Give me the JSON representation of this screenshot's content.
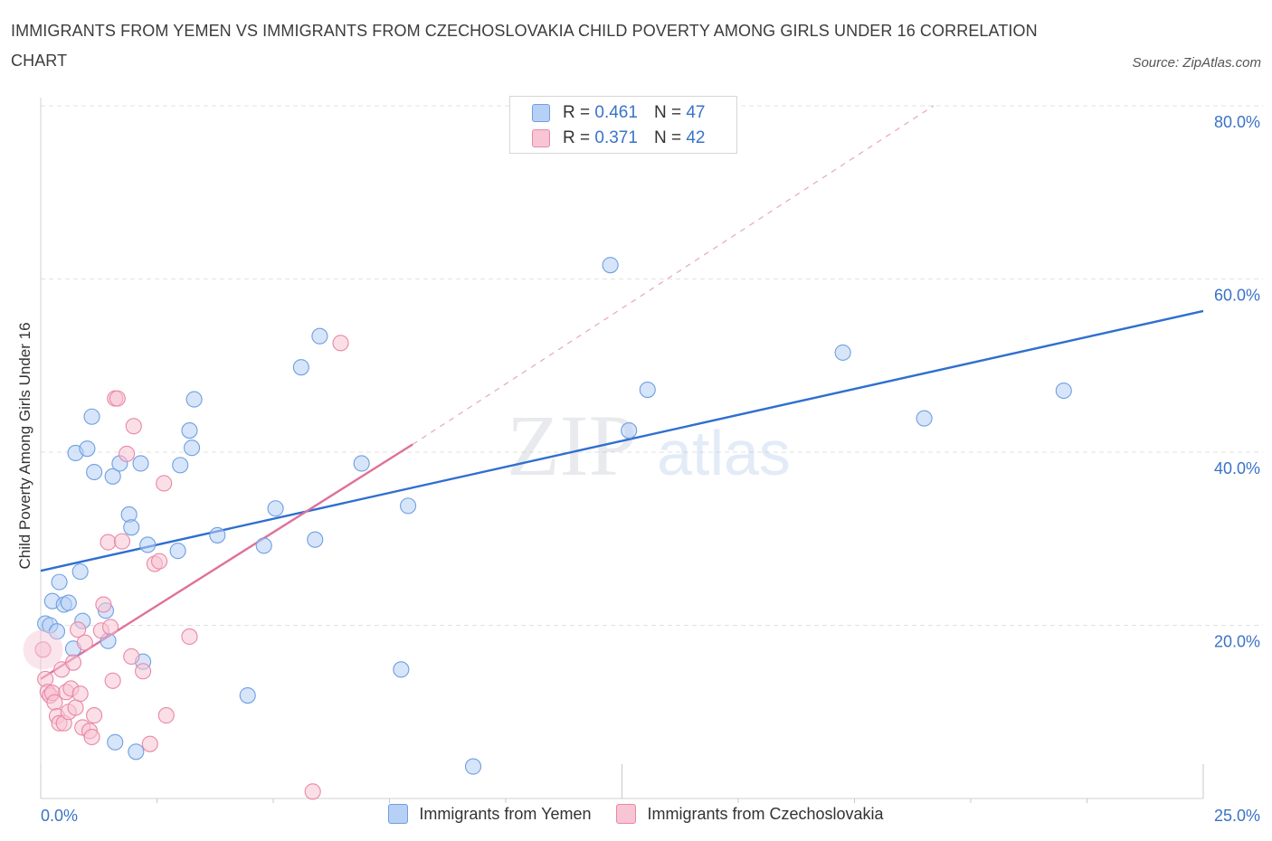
{
  "chart_data": {
    "type": "scatter",
    "title": "IMMIGRANTS FROM YEMEN VS IMMIGRANTS FROM CZECHOSLOVAKIA CHILD POVERTY AMONG GIRLS UNDER 16 CORRELATION CHART",
    "source": "Source: ZipAtlas.com",
    "xlabel": "",
    "ylabel": "Child Poverty Among Girls Under 16",
    "xlim": [
      0,
      25
    ],
    "ylim": [
      0,
      80
    ],
    "x_tick_labels": [
      "0.0%",
      "25.0%"
    ],
    "y_ticks": [
      20,
      40,
      60,
      80
    ],
    "y_tick_labels": [
      "20.0%",
      "40.0%",
      "60.0%",
      "80.0%"
    ],
    "watermark": {
      "part1": "ZIP",
      "part2": "atlas"
    },
    "legend_labels": {
      "r": "R =",
      "n": "N ="
    },
    "series": [
      {
        "name": "Immigrants from Yemen",
        "color": "#6f9fe0",
        "fill": "#b7d0f5",
        "R": "0.461",
        "N": "47",
        "trend": {
          "x0": 0,
          "y0": 26.3,
          "x1": 25,
          "y1": 56.3
        },
        "points": [
          [
            0.1,
            20.2
          ],
          [
            0.2,
            20.0
          ],
          [
            0.25,
            22.8
          ],
          [
            0.35,
            19.3
          ],
          [
            0.4,
            25.0
          ],
          [
            0.5,
            22.4
          ],
          [
            0.6,
            22.6
          ],
          [
            0.7,
            17.3
          ],
          [
            0.75,
            39.9
          ],
          [
            0.85,
            26.2
          ],
          [
            0.9,
            20.5
          ],
          [
            1.0,
            40.4
          ],
          [
            1.1,
            44.1
          ],
          [
            1.15,
            37.7
          ],
          [
            1.4,
            21.7
          ],
          [
            1.45,
            18.2
          ],
          [
            1.55,
            37.2
          ],
          [
            1.6,
            6.5
          ],
          [
            1.7,
            38.7
          ],
          [
            1.9,
            32.8
          ],
          [
            1.95,
            31.3
          ],
          [
            2.05,
            5.4
          ],
          [
            2.15,
            38.7
          ],
          [
            2.2,
            15.8
          ],
          [
            2.3,
            29.3
          ],
          [
            2.95,
            28.6
          ],
          [
            3.0,
            38.5
          ],
          [
            3.2,
            42.5
          ],
          [
            3.25,
            40.5
          ],
          [
            3.3,
            46.1
          ],
          [
            3.8,
            30.4
          ],
          [
            4.45,
            11.9
          ],
          [
            4.8,
            29.2
          ],
          [
            5.05,
            33.5
          ],
          [
            5.6,
            49.8
          ],
          [
            5.9,
            29.9
          ],
          [
            6.0,
            53.4
          ],
          [
            6.9,
            38.7
          ],
          [
            7.75,
            14.9
          ],
          [
            7.9,
            33.8
          ],
          [
            9.3,
            3.7
          ],
          [
            12.25,
            61.6
          ],
          [
            12.65,
            42.5
          ],
          [
            13.05,
            47.2
          ],
          [
            17.25,
            51.5
          ],
          [
            19.0,
            43.9
          ],
          [
            22.0,
            47.1
          ]
        ]
      },
      {
        "name": "Immigrants from Czechoslovakia",
        "color": "#e987a7",
        "fill": "#f7c5d4",
        "R": "0.371",
        "N": "42",
        "trend": {
          "x0": 0,
          "y0": 13.8,
          "x1": 8.0,
          "y1": 40.9
        },
        "trend_ext": {
          "x0": 8.0,
          "y0": 40.9,
          "x1": 19.2,
          "y1": 80.0
        },
        "points": [
          [
            0.05,
            17.2
          ],
          [
            0.1,
            13.8
          ],
          [
            0.15,
            12.3
          ],
          [
            0.2,
            11.9
          ],
          [
            0.25,
            12.2
          ],
          [
            0.3,
            11.1
          ],
          [
            0.35,
            9.5
          ],
          [
            0.4,
            8.7
          ],
          [
            0.45,
            14.9
          ],
          [
            0.5,
            8.7
          ],
          [
            0.55,
            12.3
          ],
          [
            0.6,
            10.0
          ],
          [
            0.65,
            12.7
          ],
          [
            0.7,
            15.7
          ],
          [
            0.75,
            10.5
          ],
          [
            0.8,
            19.5
          ],
          [
            0.85,
            12.1
          ],
          [
            0.9,
            8.2
          ],
          [
            0.95,
            18.0
          ],
          [
            1.05,
            7.8
          ],
          [
            1.1,
            7.1
          ],
          [
            1.15,
            9.6
          ],
          [
            1.3,
            19.4
          ],
          [
            1.35,
            22.4
          ],
          [
            1.45,
            29.6
          ],
          [
            1.5,
            19.8
          ],
          [
            1.55,
            13.6
          ],
          [
            1.6,
            46.2
          ],
          [
            1.65,
            46.2
          ],
          [
            1.75,
            29.7
          ],
          [
            1.85,
            39.8
          ],
          [
            1.95,
            16.4
          ],
          [
            2.0,
            43.0
          ],
          [
            2.2,
            14.7
          ],
          [
            2.35,
            6.3
          ],
          [
            2.45,
            27.1
          ],
          [
            2.55,
            27.4
          ],
          [
            2.65,
            36.4
          ],
          [
            2.7,
            9.6
          ],
          [
            3.2,
            18.7
          ],
          [
            5.85,
            0.8
          ],
          [
            6.45,
            52.6
          ]
        ]
      }
    ]
  }
}
